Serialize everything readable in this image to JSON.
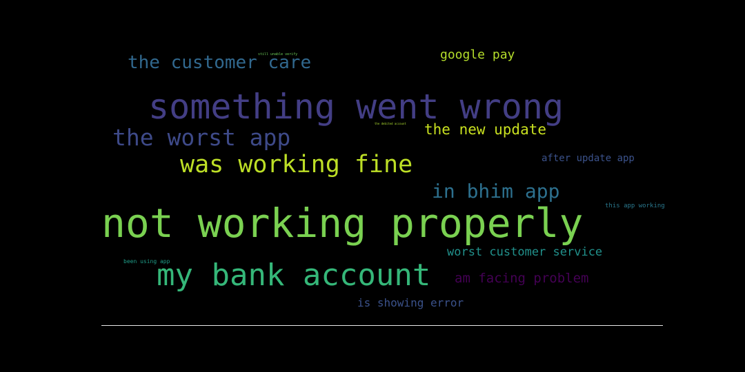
{
  "phrases": [
    {
      "text": "not working properly",
      "color": "#7ad151"
    },
    {
      "text": "something went wrong",
      "color": "#433e85"
    },
    {
      "text": "my bank account",
      "color": "#35b779"
    },
    {
      "text": "was working fine",
      "color": "#bddf26"
    },
    {
      "text": "the worst app",
      "color": "#3e4a89"
    },
    {
      "text": "in bhim app",
      "color": "#2d708e"
    },
    {
      "text": "the customer care",
      "color": "#31688e"
    },
    {
      "text": "the new update",
      "color": "#c8e020"
    },
    {
      "text": "am facing problem",
      "color": "#440154"
    },
    {
      "text": "google pay",
      "color": "#b5de2b"
    },
    {
      "text": "worst customer service",
      "color": "#21918c"
    },
    {
      "text": "is showing error",
      "color": "#3b528b"
    },
    {
      "text": "after update app",
      "color": "#3b528b"
    },
    {
      "text": "this app working",
      "color": "#2a788e"
    },
    {
      "text": "been using app",
      "color": "#1f9e89"
    },
    {
      "text": "still unable verify",
      "color": "#6ece58"
    },
    {
      "text": "the debited account",
      "color": "#addc30"
    }
  ]
}
